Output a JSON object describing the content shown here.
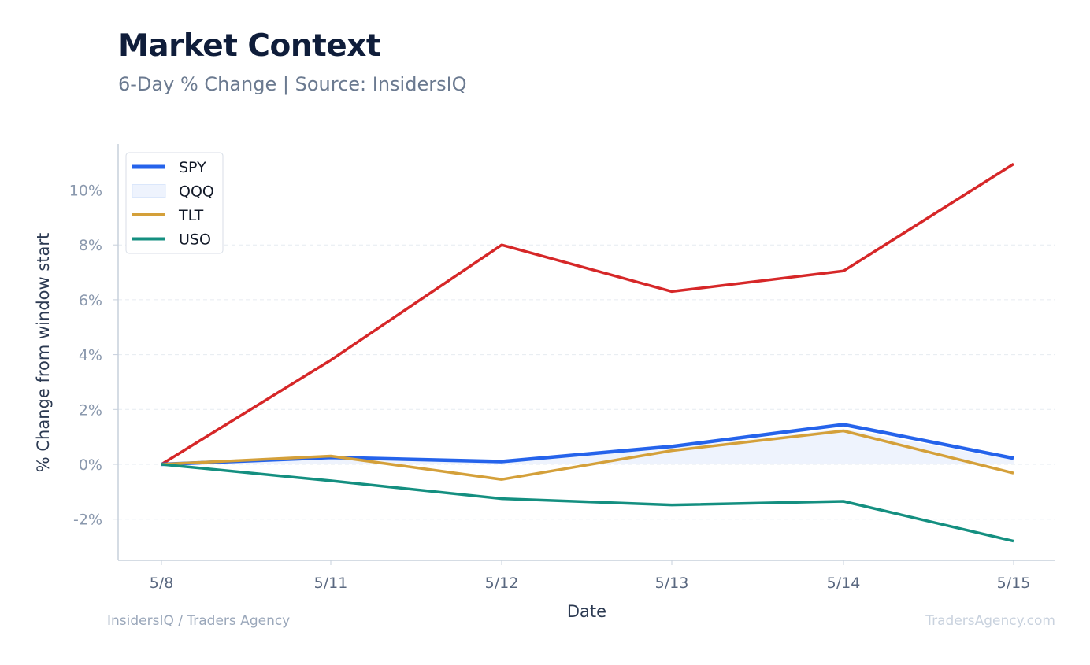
{
  "header": {
    "title": "Market Context",
    "subtitle": "6-Day % Change | Source: InsidersIQ"
  },
  "footer": {
    "left": "InsidersIQ / Traders Agency",
    "right": "TradersAgency.com"
  },
  "chart_data": {
    "type": "line",
    "title": "Market Context",
    "subtitle": "6-Day % Change | Source: InsidersIQ",
    "xlabel": "Date",
    "ylabel": "% Change from window start",
    "categories": [
      "5/8",
      "5/11",
      "5/12",
      "5/13",
      "5/14",
      "5/15"
    ],
    "ylim": [
      -3.5,
      11.8
    ],
    "yticks": [
      -2,
      0,
      2,
      4,
      6,
      8,
      10
    ],
    "ytick_labels": [
      "-2%",
      "0%",
      "2%",
      "4%",
      "6%",
      "8%",
      "10%"
    ],
    "grid": true,
    "legend_position": "top-left",
    "series": [
      {
        "name": "SPY",
        "color": "#2563eb",
        "style": "line",
        "values": [
          0.0,
          0.25,
          0.1,
          0.65,
          1.45,
          0.22
        ]
      },
      {
        "name": "QQQ",
        "color": "#dbe7fb",
        "style": "area",
        "values": [
          0.0,
          0.3,
          0.05,
          0.6,
          1.3,
          0.15
        ],
        "line_color": "#d62728",
        "line_values": [
          0.0,
          3.8,
          8.0,
          6.3,
          7.05,
          10.95
        ]
      },
      {
        "name": "TLT",
        "color": "#d4a03a",
        "style": "line",
        "values": [
          0.0,
          0.3,
          -0.55,
          0.5,
          1.22,
          -0.32
        ]
      },
      {
        "name": "USO",
        "color": "#148f80",
        "style": "line",
        "values": [
          0.0,
          -0.6,
          -1.25,
          -1.48,
          -1.35,
          -2.8
        ]
      }
    ]
  }
}
